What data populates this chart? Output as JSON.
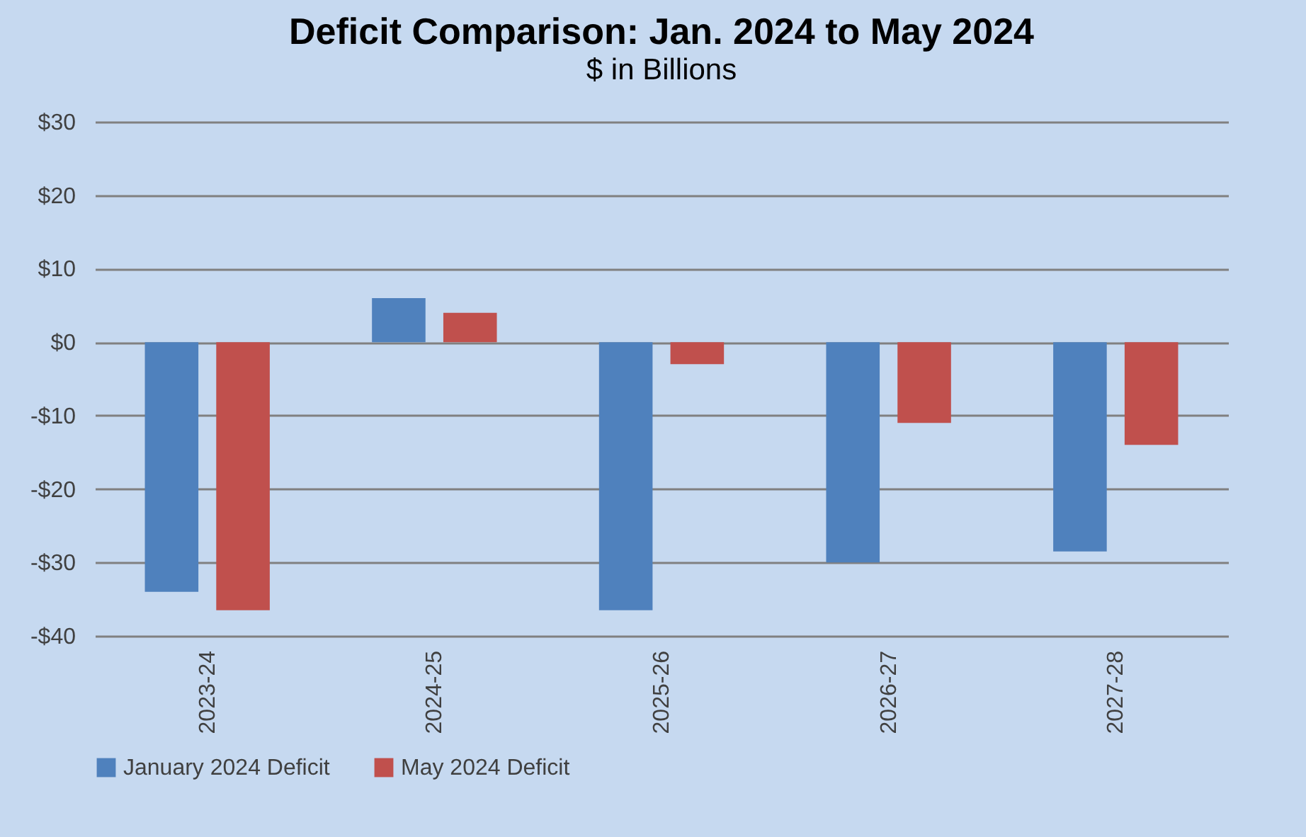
{
  "chart_data": {
    "type": "bar",
    "title": "Deficit Comparison: Jan. 2024 to May 2024",
    "subtitle": "$ in Billions",
    "categories": [
      "2023-24",
      "2024-25",
      "2025-26",
      "2026-27",
      "2027-28"
    ],
    "series": [
      {
        "name": "January 2024 Deficit",
        "color": "#4f81bd",
        "values": [
          -34,
          6,
          -36.5,
          -30,
          -28.5
        ]
      },
      {
        "name": "May 2024 Deficit",
        "color": "#c0504d",
        "values": [
          -36.5,
          4,
          -3,
          -11,
          -14
        ]
      }
    ],
    "ylim": [
      -40,
      30
    ],
    "yticks": [
      {
        "value": -40,
        "label": "-$40"
      },
      {
        "value": -30,
        "label": "-$30"
      },
      {
        "value": -20,
        "label": "-$20"
      },
      {
        "value": -10,
        "label": "-$10"
      },
      {
        "value": 0,
        "label": "$0"
      },
      {
        "value": 10,
        "label": "$10"
      },
      {
        "value": 20,
        "label": "$20"
      },
      {
        "value": 30,
        "label": "$30"
      }
    ],
    "grid": "y",
    "legend": "bottom"
  }
}
